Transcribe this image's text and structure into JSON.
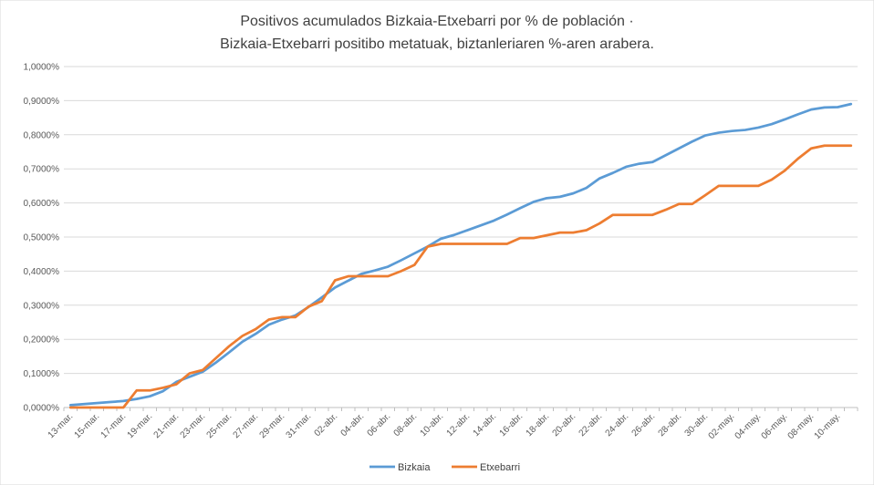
{
  "chart_data": {
    "type": "line",
    "title_line1": "Positivos acumulados Bizkaia-Etxebarri por % de población ·",
    "title_line2": "Bizkaia-Etxebarri positibo metatuak, biztanleriaren %-aren arabera.",
    "xlabel": "",
    "ylabel": "",
    "ylim": [
      0,
      1.0
    ],
    "y_ticks": [
      "0,0000%",
      "0,1000%",
      "0,2000%",
      "0,3000%",
      "0,4000%",
      "0,5000%",
      "0,6000%",
      "0,7000%",
      "0,8000%",
      "0,9000%",
      "1,0000%"
    ],
    "x": [
      "13-mar.",
      "14-mar.",
      "15-mar.",
      "16-mar.",
      "17-mar.",
      "18-mar.",
      "19-mar.",
      "20-mar.",
      "21-mar.",
      "22-mar.",
      "23-mar.",
      "24-mar.",
      "25-mar.",
      "26-mar.",
      "27-mar.",
      "28-mar.",
      "29-mar.",
      "30-mar.",
      "31-mar.",
      "01-abr.",
      "02-abr.",
      "03-abr.",
      "04-abr.",
      "05-abr.",
      "06-abr.",
      "07-abr.",
      "08-abr.",
      "09-abr.",
      "10-abr.",
      "11-abr.",
      "12-abr.",
      "13-abr.",
      "14-abr.",
      "15-abr.",
      "16-abr.",
      "17-abr.",
      "18-abr.",
      "19-abr.",
      "20-abr.",
      "21-abr.",
      "22-abr.",
      "23-abr.",
      "24-abr.",
      "25-abr.",
      "26-abr.",
      "27-abr.",
      "28-abr.",
      "29-abr.",
      "30-abr.",
      "01-may.",
      "02-may.",
      "03-may.",
      "04-may.",
      "05-may.",
      "06-may.",
      "07-may.",
      "08-may.",
      "09-may.",
      "10-may.",
      "11-may."
    ],
    "x_tick_labels": [
      "13-mar.",
      "15-mar.",
      "17-mar.",
      "19-mar.",
      "21-mar.",
      "23-mar.",
      "25-mar.",
      "27-mar.",
      "29-mar.",
      "31-mar.",
      "02-abr.",
      "04-abr.",
      "06-abr.",
      "08-abr.",
      "10-abr.",
      "12-abr.",
      "14-abr.",
      "16-abr.",
      "18-abr.",
      "20-abr.",
      "22-abr.",
      "24-abr.",
      "26-abr.",
      "28-abr.",
      "30-abr.",
      "02-may.",
      "04-may.",
      "06-may.",
      "08-may.",
      "10-may."
    ],
    "series": [
      {
        "name": "Bizkaia",
        "color": "#5B9BD5",
        "values": [
          0.007,
          0.01,
          0.013,
          0.016,
          0.019,
          0.025,
          0.033,
          0.048,
          0.075,
          0.09,
          0.105,
          0.132,
          0.162,
          0.193,
          0.216,
          0.243,
          0.258,
          0.27,
          0.295,
          0.323,
          0.352,
          0.372,
          0.392,
          0.402,
          0.413,
          0.432,
          0.452,
          0.472,
          0.495,
          0.506,
          0.52,
          0.534,
          0.548,
          0.566,
          0.585,
          0.603,
          0.614,
          0.618,
          0.628,
          0.644,
          0.672,
          0.688,
          0.706,
          0.715,
          0.72,
          0.74,
          0.76,
          0.78,
          0.798,
          0.806,
          0.811,
          0.814,
          0.821,
          0.831,
          0.845,
          0.86,
          0.874,
          0.88,
          0.881,
          0.89
        ]
      },
      {
        "name": "Etxebarri",
        "color": "#ED7D31",
        "values": [
          0.0,
          0.0,
          0.0,
          0.0,
          0.0,
          0.05,
          0.05,
          0.058,
          0.068,
          0.1,
          0.11,
          0.145,
          0.18,
          0.21,
          0.23,
          0.258,
          0.265,
          0.265,
          0.296,
          0.312,
          0.373,
          0.385,
          0.385,
          0.385,
          0.385,
          0.4,
          0.418,
          0.472,
          0.48,
          0.48,
          0.48,
          0.48,
          0.48,
          0.48,
          0.497,
          0.497,
          0.505,
          0.513,
          0.513,
          0.52,
          0.54,
          0.565,
          0.565,
          0.565,
          0.565,
          0.58,
          0.597,
          0.597,
          0.623,
          0.65,
          0.65,
          0.65,
          0.65,
          0.668,
          0.695,
          0.73,
          0.76,
          0.768,
          0.768,
          0.768
        ]
      }
    ],
    "grid": true,
    "legend": "bottom-center"
  }
}
